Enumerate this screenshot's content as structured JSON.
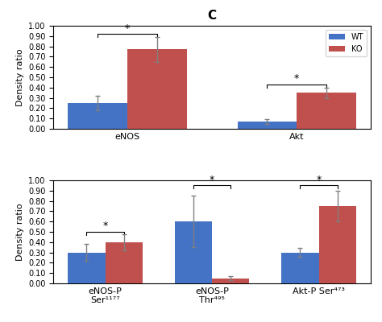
{
  "chart_data": [
    {
      "type": "bar",
      "title": "C",
      "y_label": "Density ratio",
      "categories": [
        "eNOS",
        "Akt"
      ],
      "series": [
        {
          "name": "WT",
          "color": "#4472C4",
          "values": [
            0.25,
            0.07
          ],
          "errors": [
            0.07,
            0.02
          ]
        },
        {
          "name": "KO",
          "color": "#C0504D",
          "values": [
            0.77,
            0.35
          ],
          "errors": [
            0.12,
            0.05
          ]
        }
      ],
      "significance": [
        {
          "label": "*",
          "y": 0.92
        },
        {
          "label": "*",
          "y": 0.43
        }
      ],
      "ylim": [
        0,
        1.0
      ],
      "yticks": [
        {
          "value": 0.0,
          "label": "0.00"
        },
        {
          "value": 0.1,
          "label": "0.10"
        },
        {
          "value": 0.2,
          "label": "0.20"
        },
        {
          "value": 0.3,
          "label": "0.30"
        },
        {
          "value": 0.4,
          "label": "0.40"
        },
        {
          "value": 0.5,
          "label": "0.50"
        },
        {
          "value": 0.6,
          "label": "0.60"
        },
        {
          "value": 0.7,
          "label": "0.70"
        },
        {
          "value": 0.8,
          "label": "0.80"
        },
        {
          "value": 0.9,
          "label": "0.90"
        },
        {
          "value": 1.0,
          "label": "1.00"
        }
      ],
      "legend": "upper right"
    },
    {
      "type": "bar",
      "y_label": "Density ratio",
      "categories": [
        "eNOS-P\nSer¹¹⁷⁷",
        "eNOS-P\nThr⁴⁹⁵",
        "Akt-P Ser⁴⁷³"
      ],
      "series": [
        {
          "name": "WT",
          "color": "#4472C4",
          "values": [
            0.3,
            0.6,
            0.3
          ],
          "errors": [
            0.08,
            0.25,
            0.04
          ]
        },
        {
          "name": "KO",
          "color": "#C0504D",
          "values": [
            0.4,
            0.05,
            0.75
          ],
          "errors": [
            0.08,
            0.02,
            0.15
          ]
        }
      ],
      "significance": [
        {
          "label": "*",
          "y": 0.5
        },
        {
          "label": "*",
          "y": 0.95
        },
        {
          "label": "*",
          "y": 0.95
        }
      ],
      "ylim": [
        0,
        1.0
      ],
      "yticks": [
        {
          "value": 0.0,
          "label": "0.00"
        },
        {
          "value": 0.1,
          "label": "0.10"
        },
        {
          "value": 0.2,
          "label": "0.20"
        },
        {
          "value": 0.3,
          "label": "0.30"
        },
        {
          "value": 0.4,
          "label": "0.40"
        },
        {
          "value": 0.5,
          "label": "0.50"
        },
        {
          "value": 0.6,
          "label": "0.60"
        },
        {
          "value": 0.7,
          "label": "0.70"
        },
        {
          "value": 0.8,
          "label": "0.80"
        },
        {
          "value": 0.9,
          "label": "0.90"
        },
        {
          "value": 1.0,
          "label": "1.00"
        }
      ]
    }
  ]
}
